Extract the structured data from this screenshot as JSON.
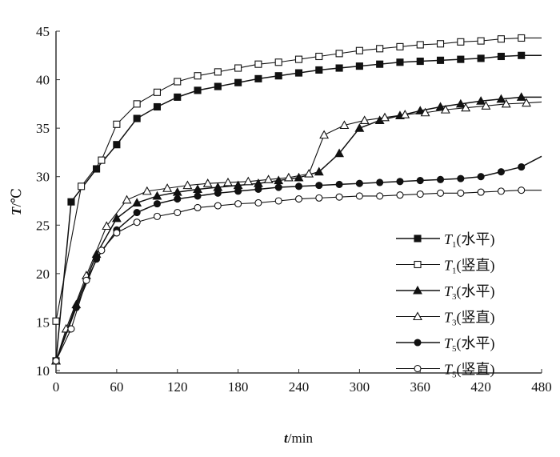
{
  "chart_data": {
    "type": "line",
    "title": "",
    "xlabel_italic": "t",
    "xlabel_unit": "/min",
    "ylabel_italic": "T",
    "ylabel_unit": "/℃",
    "xlim": [
      0,
      480
    ],
    "ylim": [
      10,
      45
    ],
    "xticks": [
      0,
      60,
      120,
      180,
      240,
      300,
      360,
      420,
      480
    ],
    "yticks": [
      10,
      15,
      20,
      25,
      30,
      35,
      40,
      45
    ],
    "grid": false,
    "legend_placement": "bottom-right",
    "series": [
      {
        "name_main": "T",
        "name_sub": "1",
        "name_suffix": "(水平)",
        "marker": "square",
        "filled": true,
        "x": [
          0,
          15,
          40,
          60,
          80,
          100,
          120,
          140,
          160,
          180,
          200,
          220,
          240,
          260,
          280,
          300,
          320,
          340,
          360,
          380,
          400,
          420,
          440,
          460,
          480
        ],
        "y": [
          11,
          27.4,
          30.8,
          33.3,
          36.0,
          37.2,
          38.2,
          38.9,
          39.3,
          39.7,
          40.1,
          40.4,
          40.7,
          41.0,
          41.2,
          41.4,
          41.6,
          41.8,
          41.9,
          42.0,
          42.1,
          42.2,
          42.4,
          42.5,
          42.5
        ]
      },
      {
        "name_main": "T",
        "name_sub": "1",
        "name_suffix": "(竖直)",
        "marker": "square",
        "filled": false,
        "x": [
          0,
          25,
          45,
          60,
          80,
          100,
          120,
          140,
          160,
          180,
          200,
          220,
          240,
          260,
          280,
          300,
          320,
          340,
          360,
          380,
          400,
          420,
          440,
          460,
          480
        ],
        "y": [
          15.1,
          29.0,
          31.7,
          35.4,
          37.5,
          38.7,
          39.8,
          40.4,
          40.8,
          41.2,
          41.6,
          41.8,
          42.1,
          42.4,
          42.7,
          43.0,
          43.2,
          43.4,
          43.6,
          43.7,
          43.9,
          44.0,
          44.2,
          44.3,
          44.3
        ]
      },
      {
        "name_main": "T",
        "name_sub": "3",
        "name_suffix": "(水平)",
        "marker": "triangle",
        "filled": true,
        "x": [
          0,
          20,
          40,
          60,
          80,
          100,
          120,
          140,
          160,
          180,
          200,
          220,
          240,
          260,
          280,
          300,
          320,
          340,
          360,
          380,
          400,
          420,
          440,
          460,
          480
        ],
        "y": [
          11,
          16.8,
          22.0,
          25.7,
          27.3,
          28.0,
          28.4,
          28.7,
          28.9,
          29.1,
          29.3,
          29.6,
          29.9,
          30.5,
          32.4,
          35.0,
          35.8,
          36.3,
          36.8,
          37.2,
          37.5,
          37.8,
          38.0,
          38.2,
          38.2
        ]
      },
      {
        "name_main": "T",
        "name_sub": "3",
        "name_suffix": "(竖直)",
        "marker": "triangle",
        "filled": false,
        "x": [
          0,
          10,
          30,
          50,
          70,
          90,
          110,
          130,
          150,
          170,
          190,
          210,
          230,
          250,
          265,
          285,
          305,
          325,
          345,
          365,
          385,
          405,
          425,
          445,
          465,
          480
        ],
        "y": [
          11,
          14.3,
          19.8,
          24.9,
          27.6,
          28.5,
          28.8,
          29.1,
          29.3,
          29.4,
          29.5,
          29.7,
          29.9,
          30.3,
          34.3,
          35.3,
          35.8,
          36.1,
          36.4,
          36.6,
          36.9,
          37.1,
          37.3,
          37.5,
          37.6,
          37.7
        ]
      },
      {
        "name_main": "T",
        "name_sub": "5",
        "name_suffix": "(水平)",
        "marker": "circle",
        "filled": true,
        "x": [
          0,
          20,
          40,
          60,
          80,
          100,
          120,
          140,
          160,
          180,
          200,
          220,
          240,
          260,
          280,
          300,
          320,
          340,
          360,
          380,
          400,
          420,
          440,
          460,
          480
        ],
        "y": [
          11,
          16.5,
          21.5,
          24.5,
          26.3,
          27.2,
          27.7,
          28.0,
          28.3,
          28.5,
          28.7,
          28.9,
          29.0,
          29.1,
          29.2,
          29.3,
          29.4,
          29.5,
          29.6,
          29.7,
          29.8,
          30.0,
          30.5,
          31.0,
          32.1
        ]
      },
      {
        "name_main": "T",
        "name_sub": "5",
        "name_suffix": "(竖直)",
        "marker": "circle",
        "filled": false,
        "x": [
          0,
          15,
          30,
          45,
          60,
          80,
          100,
          120,
          140,
          160,
          180,
          200,
          220,
          240,
          260,
          280,
          300,
          320,
          340,
          360,
          380,
          400,
          420,
          440,
          460,
          480
        ],
        "y": [
          11,
          14.3,
          19.3,
          22.4,
          24.2,
          25.3,
          25.9,
          26.3,
          26.8,
          27.0,
          27.2,
          27.3,
          27.5,
          27.7,
          27.8,
          27.9,
          28.0,
          28.0,
          28.1,
          28.2,
          28.3,
          28.3,
          28.4,
          28.5,
          28.6,
          28.6
        ]
      }
    ]
  }
}
